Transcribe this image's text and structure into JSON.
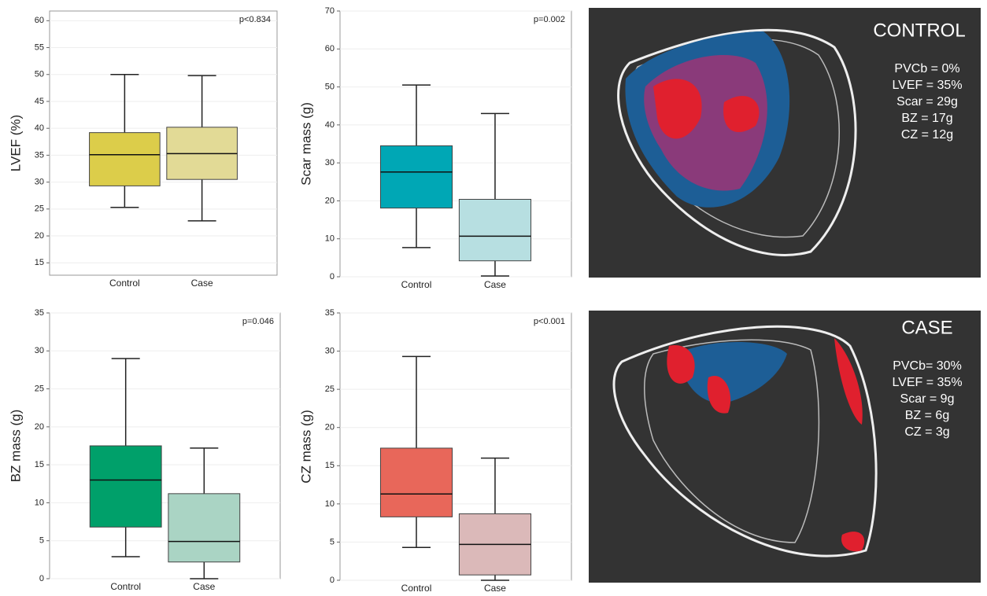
{
  "chart_data": [
    {
      "type": "box",
      "y_label": "LVEF (%)",
      "annotation": "p<0.834",
      "categories": [
        "Control",
        "Case"
      ],
      "ylim": [
        12.7,
        61.8
      ],
      "yticks": [
        15,
        20,
        25,
        30,
        35,
        40,
        45,
        50,
        55,
        60
      ],
      "grid": true,
      "boxes": [
        {
          "whislo": 25.3,
          "q1": 29.3,
          "median": 35.1,
          "q3": 39.2,
          "whishi": 50,
          "color": "#dccd4a"
        },
        {
          "whislo": 22.8,
          "q1": 30.5,
          "median": 35.3,
          "q3": 40.2,
          "whishi": 49.8,
          "color": "#e2da96"
        }
      ]
    },
    {
      "type": "box",
      "y_label": "Scar mass (g)",
      "annotation": "p=0.002",
      "categories": [
        "Control",
        "Case"
      ],
      "ylim": [
        0,
        70
      ],
      "yticks": [
        0,
        10,
        20,
        30,
        40,
        50,
        60,
        70
      ],
      "grid": true,
      "boxes": [
        {
          "whislo": 7.7,
          "q1": 18.1,
          "median": 27.6,
          "q3": 34.5,
          "whishi": 50.5,
          "color": "#00a7b5"
        },
        {
          "whislo": 0.2,
          "q1": 4.2,
          "median": 10.7,
          "q3": 20.4,
          "whishi": 43,
          "color": "#b7dfe1"
        }
      ]
    },
    {
      "type": "box",
      "y_label": "BZ mass (g)",
      "annotation": "p=0.046",
      "categories": [
        "Control",
        "Case"
      ],
      "ylim": [
        0,
        35
      ],
      "yticks": [
        0,
        5,
        10,
        15,
        20,
        25,
        30,
        35
      ],
      "grid": true,
      "boxes": [
        {
          "whislo": 2.9,
          "q1": 6.8,
          "median": 13,
          "q3": 17.5,
          "whishi": 29,
          "color": "#00a06a"
        },
        {
          "whislo": 0,
          "q1": 2.2,
          "median": 4.9,
          "q3": 11.2,
          "whishi": 17.2,
          "color": "#aad4c4"
        }
      ]
    },
    {
      "type": "box",
      "y_label": "CZ mass (g)",
      "annotation": "p<0.001",
      "categories": [
        "Control",
        "Case"
      ],
      "ylim": [
        0,
        35
      ],
      "yticks": [
        0,
        5,
        10,
        15,
        20,
        25,
        30,
        35
      ],
      "grid": true,
      "boxes": [
        {
          "whislo": 4.3,
          "q1": 8.3,
          "median": 11.3,
          "q3": 17.3,
          "whishi": 29.3,
          "color": "#e8675a"
        },
        {
          "whislo": 0,
          "q1": 0.7,
          "median": 4.7,
          "q3": 8.7,
          "whishi": 16,
          "color": "#dbb9b9"
        }
      ]
    }
  ],
  "image_panels": [
    {
      "title": "CONTROL",
      "lines": [
        "PVCb = 0%",
        "LVEF = 35%",
        "Scar = 29g",
        "BZ = 17g",
        "CZ = 12g"
      ]
    },
    {
      "title": "CASE",
      "lines": [
        "PVCb= 30%",
        "LVEF = 35%",
        "Scar = 9g",
        "BZ = 6g",
        "CZ = 3g"
      ]
    }
  ]
}
